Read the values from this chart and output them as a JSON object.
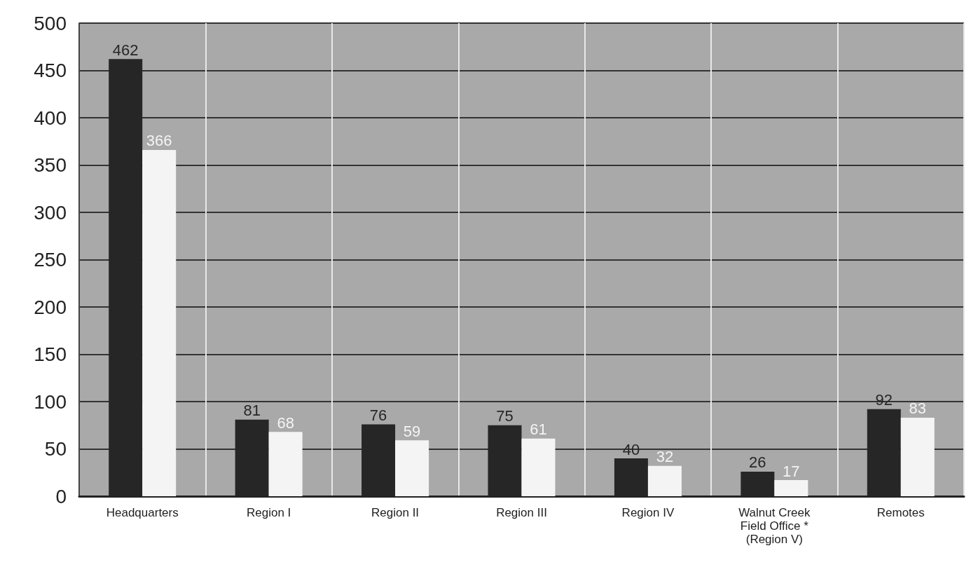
{
  "chart_data": {
    "type": "bar",
    "categories": [
      "Headquarters",
      "Region I",
      "Region II",
      "Region III",
      "Region IV",
      "Walnut Creek\nField Office *\n(Region V)",
      "Remotes"
    ],
    "series": [
      {
        "color": "#262626",
        "values": [
          462,
          81,
          76,
          75,
          40,
          26,
          92
        ]
      },
      {
        "color": "#f4f4f4",
        "values": [
          366,
          68,
          59,
          61,
          32,
          17,
          83
        ]
      }
    ],
    "ylim": [
      0,
      500
    ],
    "yticks": [
      0,
      50,
      100,
      150,
      200,
      250,
      300,
      350,
      400,
      450,
      500
    ],
    "grid": true,
    "data_labels": true
  }
}
